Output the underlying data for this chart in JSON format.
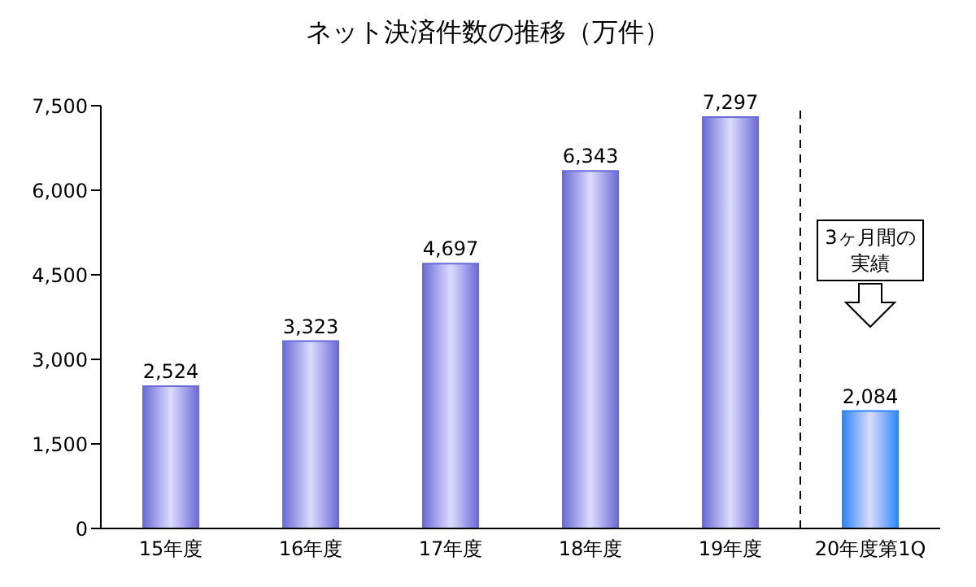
{
  "chart_data": {
    "type": "bar",
    "title": "ネット決済件数の推移（万件）",
    "categories": [
      "15年度",
      "16年度",
      "17年度",
      "18年度",
      "19年度",
      "20年度第1Q"
    ],
    "values": [
      2524,
      3323,
      4697,
      6343,
      7297,
      2084
    ],
    "value_labels": [
      "2,524",
      "3,323",
      "4,697",
      "6,343",
      "7,297",
      "2,084"
    ],
    "colors": [
      "#6b6bd6",
      "#6b6bd6",
      "#6b6bd6",
      "#6b6bd6",
      "#6b6bd6",
      "#2f86f5"
    ],
    "ylim": [
      0,
      7500
    ],
    "yticks": [
      0,
      {
        "value": 1500,
        "label": "1,500"
      },
      {
        "value": 3000,
        "label": "3,000"
      },
      {
        "value": 4500,
        "label": "4,500"
      },
      {
        "value": 6000,
        "label": "6,000"
      },
      {
        "value": 7500,
        "label": "7,500"
      }
    ],
    "grid": false,
    "annotations": [
      "3ヶ月間の実績"
    ]
  }
}
